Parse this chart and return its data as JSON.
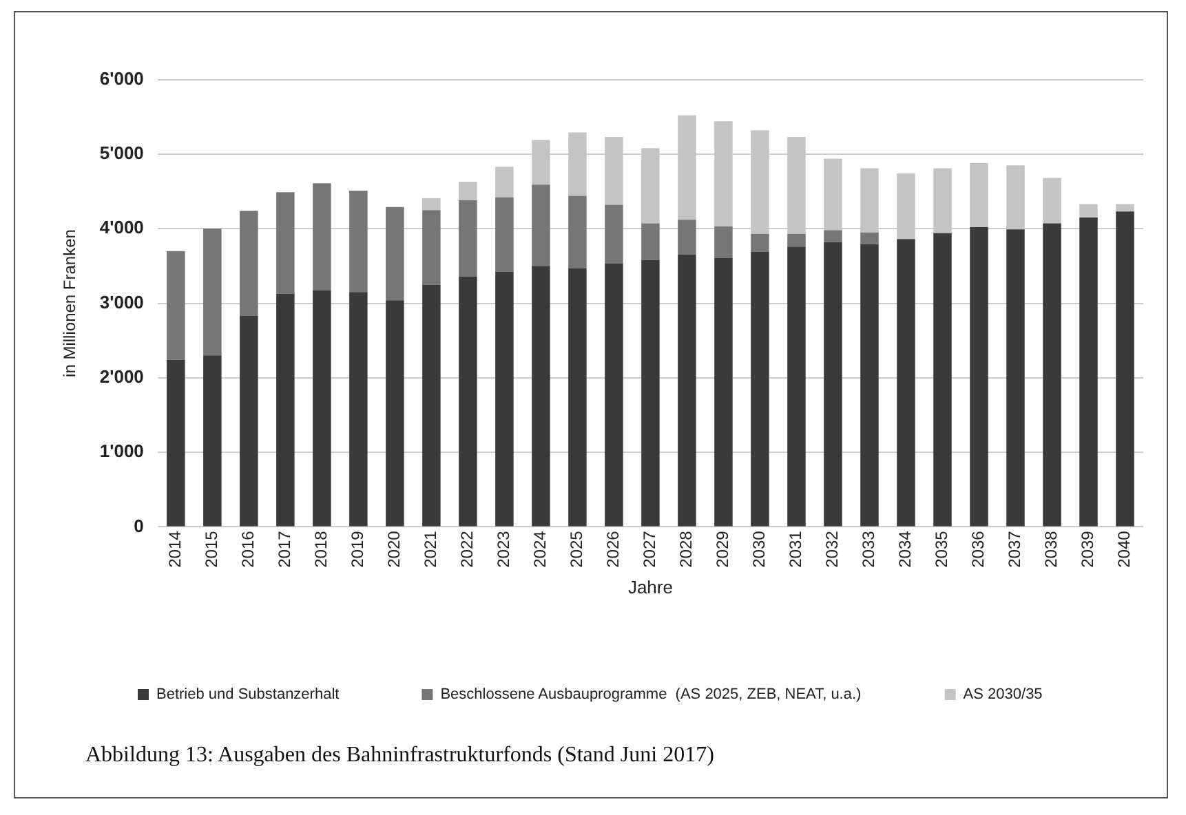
{
  "chart_data": {
    "type": "bar",
    "stacked": true,
    "xlabel": "Jahre",
    "ylabel": "in Millionen Franken",
    "categories": [
      "2014",
      "2015",
      "2016",
      "2017",
      "2018",
      "2019",
      "2020",
      "2021",
      "2022",
      "2023",
      "2024",
      "2025",
      "2026",
      "2027",
      "2028",
      "2029",
      "2030",
      "2031",
      "2032",
      "2033",
      "2034",
      "2035",
      "2036",
      "2037",
      "2038",
      "2039",
      "2040"
    ],
    "series": [
      {
        "name": "Betrieb und Substanzerhalt",
        "color": "#3a3a3a",
        "values": [
          2240,
          2300,
          2830,
          3130,
          3170,
          3150,
          3040,
          3250,
          3360,
          3420,
          3500,
          3470,
          3530,
          3580,
          3650,
          3610,
          3690,
          3760,
          3820,
          3790,
          3860,
          3940,
          4020,
          3990,
          4070,
          4150,
          4230
        ]
      },
      {
        "name": "Beschlossene Ausbauprogramme  (AS 2025, ZEB, NEAT, u.a.)",
        "color": "#767676",
        "values": [
          1460,
          1700,
          1410,
          1360,
          1440,
          1360,
          1250,
          1000,
          1020,
          1000,
          1090,
          970,
          790,
          490,
          470,
          420,
          240,
          170,
          160,
          160,
          0,
          0,
          0,
          0,
          0,
          0,
          0
        ]
      },
      {
        "name": "AS 2030/35",
        "color": "#c4c4c4",
        "values": [
          0,
          0,
          0,
          0,
          0,
          0,
          0,
          160,
          250,
          410,
          600,
          850,
          910,
          1010,
          1400,
          1410,
          1390,
          1300,
          960,
          860,
          880,
          870,
          860,
          860,
          610,
          180,
          100
        ]
      }
    ],
    "ylim": [
      0,
      6000
    ],
    "yticks": [
      0,
      {
        "value": 1000,
        "label": "1'000"
      },
      {
        "value": 2000,
        "label": "2'000"
      },
      {
        "value": 3000,
        "label": "3'000"
      },
      {
        "value": 4000,
        "label": "4'000"
      },
      {
        "value": 5000,
        "label": "5'000"
      },
      {
        "value": 6000,
        "label": "6'000"
      }
    ],
    "grid": "y",
    "legend": "bottom",
    "annotations": [
      "Abbildung 13: Ausgaben des Bahninfrastrukturfonds (Stand Juni 2017)"
    ]
  }
}
